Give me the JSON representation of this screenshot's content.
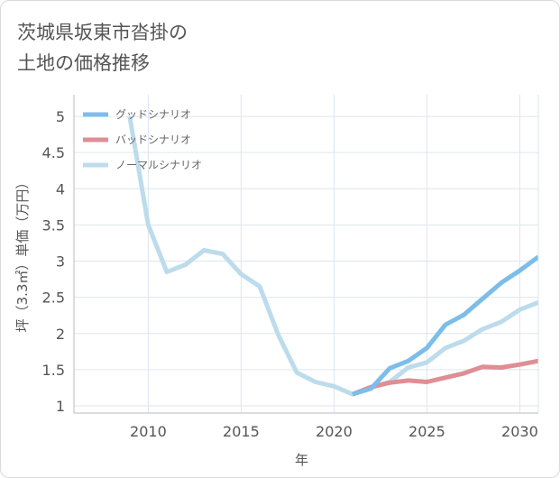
{
  "title_lines": [
    "茨城県坂東市沓掛の",
    "土地の価格推移"
  ],
  "colors": {
    "good": "#7cbde9",
    "bad": "#de8e94",
    "normal": "#bcdcec",
    "grid": "#dde6ee",
    "axis": "#bbbbbb",
    "text": "#555555"
  },
  "chart_data": {
    "type": "line",
    "xlabel": "年",
    "ylabel": "坪（3.3㎡）単価（万円）",
    "xlim": [
      2006,
      2031
    ],
    "ylim": [
      0.9,
      5.3
    ],
    "x_ticks": [
      2010,
      2015,
      2020,
      2025,
      2030
    ],
    "y_ticks": [
      1,
      1.5,
      2,
      2.5,
      3,
      3.5,
      4,
      4.5,
      5
    ],
    "y_tick_labels": [
      "1",
      "1.5",
      "2",
      "2.5",
      "3",
      "3.5",
      "4",
      "4.5",
      "5"
    ],
    "legend_position": "top-left",
    "series": [
      {
        "name": "グッドシナリオ",
        "key": "good",
        "x": [
          2021,
          2022,
          2023,
          2024,
          2025,
          2026,
          2027,
          2028,
          2029,
          2030,
          2031
        ],
        "y": [
          1.16,
          1.24,
          1.52,
          1.62,
          1.8,
          2.12,
          2.26,
          2.48,
          2.7,
          2.87,
          3.06
        ]
      },
      {
        "name": "バッドシナリオ",
        "key": "bad",
        "x": [
          2021,
          2022,
          2023,
          2024,
          2025,
          2026,
          2027,
          2028,
          2029,
          2030,
          2031
        ],
        "y": [
          1.16,
          1.26,
          1.32,
          1.35,
          1.33,
          1.39,
          1.45,
          1.54,
          1.53,
          1.57,
          1.62
        ]
      },
      {
        "name": "ノーマルシナリオ",
        "key": "normal",
        "x": [
          2009,
          2010,
          2011,
          2012,
          2013,
          2014,
          2015,
          2016,
          2017,
          2018,
          2019,
          2020,
          2021,
          2022,
          2023,
          2024,
          2025,
          2026,
          2027,
          2028,
          2029,
          2030,
          2031
        ],
        "y": [
          5.0,
          3.5,
          2.85,
          2.95,
          3.15,
          3.1,
          2.82,
          2.65,
          1.98,
          1.46,
          1.33,
          1.27,
          1.16,
          1.25,
          1.33,
          1.53,
          1.6,
          1.8,
          1.9,
          2.06,
          2.16,
          2.33,
          2.43
        ]
      }
    ]
  }
}
